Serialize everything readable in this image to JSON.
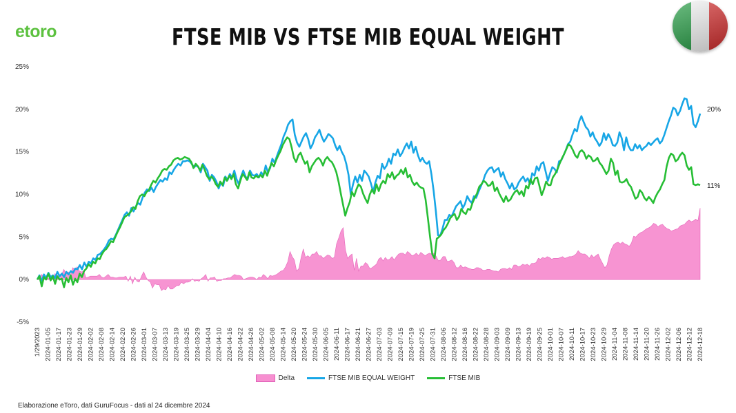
{
  "header": {
    "logo": "etoro",
    "title": "FTSE MIB VS FTSE MIB EQUAL WEIGHT",
    "flag_icon": "italy-flag-icon"
  },
  "footer": {
    "source": "Elaborazione eToro, dati GuruFocus - dati al 24 dicembre 2024"
  },
  "colors": {
    "delta": "#f78fd0",
    "equal_weight": "#17a6e6",
    "ftse_mib": "#27be35",
    "brand": "#5cc13f"
  },
  "chart_data": {
    "type": "line",
    "title": "FTSE MIB VS FTSE MIB EQUAL WEIGHT",
    "ylim": [
      -5,
      25
    ],
    "y_ticks": [
      "25%",
      "20%",
      "15%",
      "10%",
      "5%",
      "0%",
      "-5%"
    ],
    "x_tick_labels": [
      "1/29/2023",
      "2024-01-05",
      "2024-01-17",
      "2024-01-23",
      "2024-01-29",
      "2024-02-02",
      "2024-02-08",
      "2024-02-14",
      "2024-02-20",
      "2024-02-26",
      "2024-03-01",
      "2024-03-07",
      "2024-03-13",
      "2024-03-19",
      "2024-03-25",
      "2024-03-29",
      "2024-04-04",
      "2024-04-10",
      "2024-04-16",
      "2024-04-22",
      "2024-04-26",
      "2024-05-02",
      "2024-05-08",
      "2024-05-14",
      "2024-05-20",
      "2024-05-24",
      "2024-05-30",
      "2024-06-05",
      "2024-06-11",
      "2024-06-17",
      "2024-06-21",
      "2024-06-27",
      "2024-07-03",
      "2024-07-09",
      "2024-07-15",
      "2024-07-19",
      "2024-07-25",
      "2024-07-31",
      "2024-08-06",
      "2024-08-12",
      "2024-08-16",
      "2024-08-22",
      "2024-08-28",
      "2024-09-03",
      "2024-09-09",
      "2024-09-13",
      "2024-09-19",
      "2024-09-25",
      "2024-10-01",
      "2024-10-07",
      "2024-10-11",
      "2024-10-17",
      "2024-10-23",
      "2024-10-29",
      "2024-11-04",
      "2024-11-08",
      "2024-11-14",
      "2024-11-20",
      "2024-11-26",
      "2024-12-02",
      "2024-12-06",
      "2024-12-12",
      "2024-12-18"
    ],
    "end_labels": {
      "equal_weight": "20%",
      "ftse_mib": "11%"
    },
    "legend": [
      "Delta",
      "FTSE MIB EQUAL WEIGHT",
      "FTSE MIB"
    ],
    "series": [
      {
        "name": "FTSE MIB EQUAL WEIGHT",
        "values": [
          0,
          0.5,
          -0.2,
          0.6,
          0.2,
          0.8,
          0.3,
          0.5,
          0.2,
          0.9,
          0.4,
          0.7,
          0.3,
          0.9,
          0.6,
          1.0,
          0.8,
          1.3,
          1.2,
          1.7,
          1.2,
          2.0,
          1.5,
          2.1,
          1.9,
          2.5,
          2.3,
          2.9,
          3.0,
          3.3,
          3.6,
          4.0,
          4.6,
          4.8,
          4.7,
          5.2,
          5.8,
          6.4,
          7.0,
          7.6,
          7.9,
          7.5,
          8.4,
          8.0,
          8.6,
          9.0,
          8.8,
          9.6,
          10.2,
          10.6,
          10.4,
          10.8,
          10.3,
          10.9,
          11.3,
          11.7,
          11.5,
          11.9,
          11.7,
          12.6,
          12.4,
          12.9,
          13.3,
          13.6,
          13.4,
          13.9,
          13.9,
          14.0,
          13.9,
          13.6,
          13.2,
          13.4,
          13.2,
          12.6,
          13.6,
          13.2,
          12.8,
          11.6,
          12.3,
          12.0,
          11.5,
          10.7,
          11.4,
          11.0,
          12.1,
          11.7,
          12.4,
          12.0,
          12.8,
          11.8,
          11.2,
          12.1,
          12.8,
          12.1,
          11.8,
          12.8,
          12.3,
          12.2,
          12.4,
          12.0,
          12.6,
          12.2,
          13.4,
          12.6,
          13.1,
          14.2,
          13.7,
          14.5,
          15.2,
          15.9,
          16.8,
          17.4,
          18.2,
          18.6,
          18.8,
          17.0,
          16.1,
          15.6,
          16.2,
          16.8,
          17.2,
          16.5,
          15.4,
          15.9,
          16.7,
          17.1,
          17.6,
          16.8,
          16.2,
          16.6,
          17.1,
          16.9,
          16.6,
          15.8,
          15.2,
          15.7,
          15.0,
          14.5,
          13.6,
          12.3,
          10.0,
          11.2,
          12.1,
          11.4,
          12.3,
          11.6,
          12.8,
          12.5,
          12.1,
          11.3,
          10.3,
          11.4,
          12.2,
          11.9,
          13.6,
          13.0,
          13.4,
          14.2,
          13.6,
          14.8,
          14.6,
          15.3,
          14.5,
          14.9,
          15.5,
          16.0,
          15.4,
          16.2,
          14.9,
          15.6,
          14.6,
          13.9,
          14.3,
          13.8,
          13.6,
          13.9,
          12.4,
          10.4,
          8.0,
          5.2,
          5.2,
          6.0,
          7.0,
          7.0,
          7.6,
          7.4,
          8.0,
          8.6,
          8.9,
          9.2,
          8.4,
          8.9,
          9.8,
          9.3,
          9.0,
          9.8,
          9.6,
          10.3,
          10.9,
          11.5,
          12.3,
          12.8,
          13.1,
          13.2,
          12.6,
          12.9,
          13.1,
          12.1,
          12.6,
          11.8,
          11.3,
          10.7,
          11.3,
          10.6,
          10.8,
          11.4,
          11.8,
          12.1,
          11.5,
          11.9,
          11.2,
          12.5,
          12.2,
          13.3,
          12.8,
          13.6,
          13.8,
          12.7,
          11.6,
          12.5,
          13.2,
          13.0,
          12.6,
          13.9,
          14.0,
          14.6,
          15.2,
          15.9,
          16.2,
          17.0,
          17.7,
          17.4,
          18.6,
          19.2,
          18.5,
          17.9,
          17.6,
          16.8,
          17.3,
          16.6,
          16.2,
          15.7,
          16.1,
          17.2,
          16.4,
          17.1,
          16.6,
          15.8,
          15.7,
          16.1,
          17.3,
          16.6,
          15.2,
          16.7,
          15.7,
          15.2,
          15.2,
          15.9,
          15.4,
          15.8,
          15.2,
          15.5,
          15.7,
          16.1,
          15.8,
          16.1,
          16.4,
          16.6,
          16.0,
          16.3,
          17.0,
          17.8,
          18.6,
          19.3,
          20.2,
          20.0,
          19.3,
          19.8,
          20.6,
          21.3,
          21.2,
          20.0,
          20.4,
          18.3,
          17.9,
          18.6,
          19.5
        ]
      },
      {
        "name": "FTSE MIB",
        "values": [
          0,
          0.4,
          -0.8,
          0.3,
          0.0,
          0.7,
          -0.1,
          0.4,
          -0.5,
          0.4,
          0.0,
          0.1,
          -0.9,
          0.2,
          -0.3,
          0.5,
          -0.6,
          0.1,
          -0.3,
          0.7,
          0.3,
          1.0,
          1.3,
          1.8,
          1.5,
          2.1,
          1.9,
          2.5,
          2.4,
          3.0,
          3.4,
          3.6,
          4.0,
          4.5,
          4.4,
          5.0,
          5.6,
          6.1,
          6.7,
          7.3,
          7.5,
          7.7,
          8.0,
          8.5,
          8.3,
          9.2,
          9.8,
          10.0,
          9.8,
          10.3,
          10.5,
          11.1,
          11.6,
          11.4,
          11.9,
          12.3,
          12.8,
          13.0,
          12.9,
          13.3,
          13.5,
          14.0,
          14.2,
          14.3,
          14.1,
          14.2,
          14.4,
          14.3,
          14.2,
          13.8,
          13.1,
          13.6,
          13.3,
          12.8,
          13.5,
          12.9,
          12.2,
          11.8,
          12.1,
          11.8,
          11.2,
          10.9,
          11.5,
          11.1,
          12.0,
          11.6,
          12.2,
          11.8,
          12.4,
          11.2,
          10.7,
          11.6,
          12.4,
          12.1,
          11.7,
          12.6,
          12.0,
          11.9,
          12.2,
          12.0,
          12.3,
          12.0,
          12.8,
          12.2,
          13.0,
          13.7,
          13.3,
          14.0,
          14.6,
          15.1,
          15.8,
          16.3,
          16.7,
          16.5,
          15.5,
          14.3,
          13.8,
          14.6,
          14.9,
          14.2,
          13.6,
          13.9,
          12.6,
          13.3,
          13.7,
          14.1,
          14.3,
          14.0,
          13.4,
          14.1,
          14.4,
          14.0,
          13.8,
          13.3,
          12.6,
          11.5,
          10.1,
          8.8,
          7.5,
          8.4,
          9.1,
          10.3,
          9.8,
          10.6,
          11.2,
          10.9,
          10.1,
          9.5,
          9.0,
          10.0,
          10.6,
          10.1,
          11.2,
          10.4,
          11.2,
          11.6,
          11.3,
          12.4,
          12.0,
          12.6,
          11.8,
          12.2,
          12.4,
          12.9,
          12.4,
          13.1,
          12.0,
          12.3,
          11.5,
          11.1,
          11.4,
          11.0,
          10.8,
          10.7,
          9.4,
          7.3,
          5.0,
          3.0,
          2.5,
          4.8,
          5.0,
          5.3,
          5.8,
          6.1,
          6.6,
          7.2,
          7.5,
          7.7,
          7.0,
          7.4,
          8.3,
          7.9,
          7.7,
          8.3,
          8.2,
          9.0,
          9.6,
          10.1,
          10.9,
          11.2,
          11.6,
          11.4,
          11.0,
          11.1,
          11.5,
          10.4,
          10.8,
          10.1,
          9.6,
          9.1,
          9.8,
          9.2,
          9.4,
          9.9,
          10.3,
          10.5,
          10.0,
          10.4,
          9.8,
          11.0,
          10.7,
          11.8,
          11.2,
          11.9,
          12.0,
          11.0,
          9.9,
          10.6,
          11.5,
          11.1,
          11.1,
          12.0,
          12.4,
          12.9,
          13.6,
          14.2,
          14.7,
          15.3,
          15.9,
          15.7,
          15.2,
          14.6,
          14.3,
          15.0,
          15.2,
          14.9,
          14.2,
          14.6,
          14.4,
          13.9,
          14.0,
          14.3,
          13.7,
          13.4,
          12.9,
          12.4,
          12.8,
          14.2,
          13.7,
          12.3,
          12.8,
          11.5,
          11.4,
          11.5,
          11.8,
          11.2,
          10.9,
          10.2,
          9.5,
          9.7,
          10.5,
          10.2,
          9.6,
          9.3,
          9.7,
          9.4,
          9.0,
          9.7,
          10.2,
          10.6,
          11.2,
          11.7,
          13.3,
          14.3,
          14.8,
          14.6,
          13.9,
          14.1,
          14.6,
          14.9,
          14.6,
          13.4,
          12.9,
          13.2,
          11.2,
          11.1,
          11.2,
          11.1
        ]
      }
    ],
    "delta": {
      "name": "Delta",
      "values": [
        0,
        0.1,
        0.6,
        0.3,
        0.2,
        0.1,
        0.4,
        0.1,
        0.7,
        0.5,
        0.4,
        0.6,
        1.2,
        0.7,
        0.9,
        0.5,
        1.4,
        1.2,
        1.5,
        1.0,
        0.9,
        1.0,
        0.2,
        0.3,
        0.4,
        0.4,
        0.4,
        0.4,
        0.6,
        0.3,
        0.2,
        0.4,
        0.6,
        0.3,
        0.3,
        0.2,
        0.2,
        0.3,
        0.3,
        0.3,
        0.4,
        -0.2,
        0.4,
        -0.5,
        0.3,
        -0.2,
        -0.3,
        0.4,
        0.9,
        0.3,
        -0.1,
        -0.3,
        -1.0,
        -0.5,
        -0.6,
        -0.6,
        -1.3,
        -1.1,
        -1.2,
        -0.7,
        -1.1,
        -1.1,
        -0.9,
        -0.7,
        -0.7,
        -0.3,
        -0.5,
        -0.3,
        -0.3,
        -0.2,
        0.1,
        -0.2,
        -0.1,
        -0.2,
        0.1,
        0.3,
        0.6,
        -0.2,
        0.2,
        0.2,
        0.3,
        -0.2,
        -0.1,
        -0.1,
        0.1,
        0.1,
        0.2,
        0.2,
        0.4,
        0.6,
        0.5,
        0.5,
        0.4,
        0.0,
        0.1,
        0.2,
        0.3,
        0.3,
        0.2,
        0.0,
        0.3,
        0.2,
        0.6,
        0.4,
        0.1,
        0.5,
        0.4,
        0.5,
        0.6,
        0.8,
        1.0,
        1.1,
        1.5,
        2.1,
        3.3,
        2.7,
        2.3,
        1.0,
        1.3,
        2.6,
        3.6,
        2.6,
        2.8,
        2.6,
        3.0,
        3.0,
        3.3,
        2.8,
        2.8,
        2.5,
        2.7,
        2.9,
        2.8,
        2.5,
        2.6,
        4.2,
        4.9,
        5.7,
        6.1,
        3.5,
        2.5,
        2.8,
        3.0,
        1.1,
        2.5,
        1.0,
        1.6,
        1.6,
        2.0,
        1.8,
        1.3,
        1.4,
        1.6,
        1.8,
        2.4,
        2.6,
        2.2,
        2.6,
        2.3,
        2.4,
        2.7,
        2.3,
        2.7,
        3.0,
        3.1,
        3.1,
        2.9,
        3.3,
        3.1,
        2.8,
        2.9,
        3.1,
        2.8,
        3.2,
        3.0,
        2.8,
        3.0,
        3.1,
        3.0,
        3.1,
        2.7,
        2.2,
        2.3,
        2.7,
        2.7,
        2.1,
        2.2,
        2.3,
        2.0,
        1.4,
        1.4,
        1.7,
        1.4,
        1.5,
        1.4,
        1.3,
        1.2,
        1.2,
        1.4,
        1.4,
        1.3,
        1.1,
        1.1,
        1.2,
        1.2,
        1.1,
        1.0,
        1.0,
        0.9,
        1.2,
        1.3,
        1.3,
        1.2,
        1.4,
        1.2,
        1.7,
        1.7,
        1.5,
        1.6,
        1.8,
        1.7,
        1.8,
        1.6,
        1.9,
        1.9,
        2.0,
        2.5,
        2.4,
        2.6,
        2.5,
        2.7,
        2.6,
        2.4,
        2.5,
        2.5,
        2.5,
        2.6,
        2.7,
        2.5,
        2.6,
        2.7,
        2.7,
        2.8,
        3.0,
        3.4,
        3.1,
        3.0,
        3.0,
        2.8,
        2.5,
        2.9,
        2.6,
        2.8,
        3.0,
        2.4,
        1.9,
        1.4,
        1.7,
        2.8,
        3.6,
        4.1,
        4.3,
        4.4,
        4.2,
        4.4,
        4.2,
        4.1,
        3.9,
        4.3,
        5.1,
        5.0,
        5.3,
        5.5,
        5.6,
        5.8,
        6.0,
        6.1,
        6.3,
        6.6,
        6.5,
        6.2,
        6.4,
        6.5,
        6.2,
        6.0,
        5.9,
        5.7,
        5.8,
        5.9,
        6.0,
        6.3,
        6.4,
        6.5,
        6.8,
        7.0,
        6.8,
        6.9,
        7.1,
        6.9,
        8.4
      ]
    }
  }
}
